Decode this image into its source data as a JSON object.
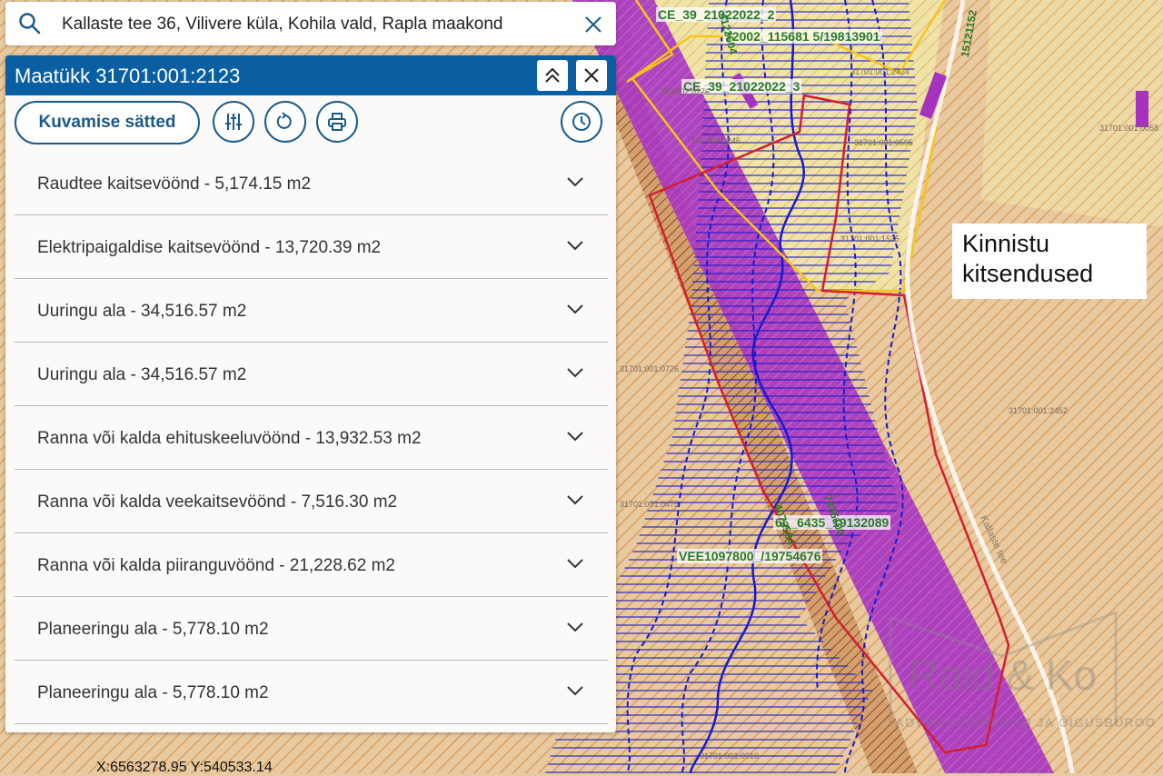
{
  "search": {
    "value": "Kallaste tee 36, Vilivere küla, Kohila vald, Rapla maakond"
  },
  "panel": {
    "title": "Maatükk 31701:001:2123",
    "display_settings_label": "Kuvamise sätted",
    "items": [
      {
        "label": "Raudtee kaitsevöönd - 5,174.15 m2"
      },
      {
        "label": "Elektripaigaldise kaitsevöönd - 13,720.39 m2"
      },
      {
        "label": "Uuringu ala - 34,516.57 m2"
      },
      {
        "label": "Uuringu ala - 34,516.57 m2"
      },
      {
        "label": "Ranna või kalda ehituskeeluvöönd - 13,932.53 m2"
      },
      {
        "label": "Ranna või kalda veekaitsevöönd - 7,516.30 m2"
      },
      {
        "label": "Ranna või kalda piiranguvöönd - 21,228.62 m2"
      },
      {
        "label": "Planeeringu ala - 5,778.10 m2"
      },
      {
        "label": "Planeeringu ala - 5,778.10 m2"
      }
    ]
  },
  "map": {
    "annotation": "Kinnistu kitsendused",
    "annotation_line1": "Kinnistu",
    "annotation_line2": "kitsendused",
    "coordinates": "X:6563278.95 Y:540533.14",
    "labels": {
      "ce_1": "CE_39_21022022_2",
      "ce_2": "CE_39_21022022_3",
      "code_a": "72002_115681 5/19813901",
      "code_b": "4123504",
      "code_c": "15121152",
      "code_d": "6L_6435_19132089",
      "code_e": "4073584",
      "code_f": "7436100",
      "vee": "VEE1097800_/19754676",
      "road": "Kallaste tee"
    },
    "parcels": {
      "p1": "31701:001:2424",
      "p2": "31701:001:0595",
      "p3": "31701:001:0058",
      "p4": "31701:001:1535",
      "p5": "31701:001:2452",
      "p6": "31701:001:0475",
      "p7": "31701:001:0726",
      "p8": "31701:001:0910",
      "p9": "702:002:0246",
      "p10": "702:002:0276"
    },
    "watermark": "Raid & Ko",
    "watermark_sub": "ADVOKAADIBÜROO JA ÕIGUSBÜROO"
  },
  "colors": {
    "header_blue": "#0a5fa3",
    "accent_blue": "#1a5a8a",
    "map_background": "#e8c9a0",
    "boundary_red": "#d11f2f",
    "hatch_blue": "#1a1acc",
    "purple": "#a633c0",
    "yellow": "#f5c518"
  },
  "icons": {
    "search": "search-icon",
    "clear": "close-icon",
    "collapse": "double-chevron-up-icon",
    "close": "close-icon",
    "filter": "sliders-icon",
    "refresh": "refresh-icon",
    "print": "printer-icon",
    "history": "clock-icon",
    "expand": "chevron-down-icon"
  }
}
